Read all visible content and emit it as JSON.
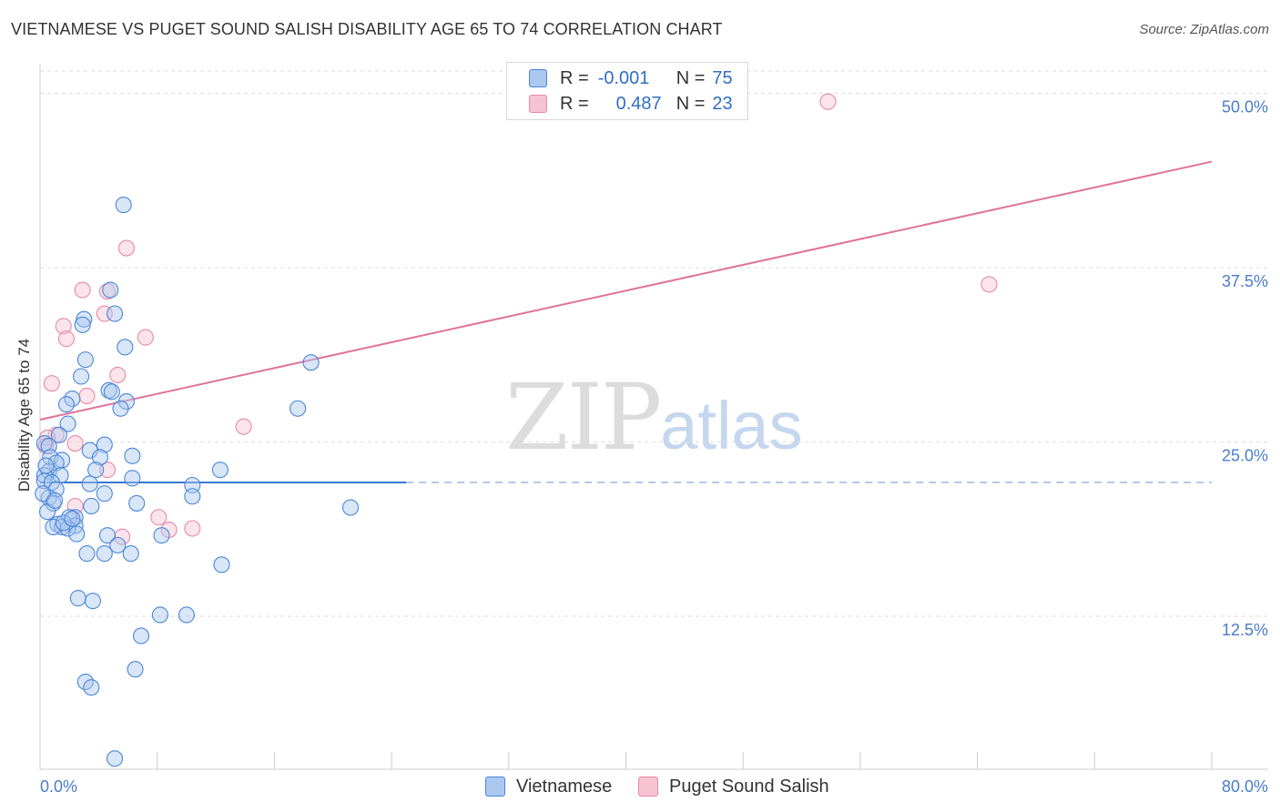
{
  "title": "VIETNAMESE VS PUGET SOUND SALISH DISABILITY AGE 65 TO 74 CORRELATION CHART",
  "source": "Source: ZipAtlas.com",
  "watermark": {
    "zip": "ZIP",
    "atlas": "atlas"
  },
  "colors": {
    "vietnamese_fill": "#aac8f0",
    "vietnamese_stroke": "#4a86d8",
    "vietnamese_line": "#3a78d0",
    "salish_fill": "#f6c3d2",
    "salish_stroke": "#e889a7",
    "salish_line": "#e0729a",
    "tick_label": "#4a7cc9",
    "grid": "#dddddd"
  },
  "legend": {
    "rows": [
      {
        "r_label": "R =",
        "r_value": "-0.001",
        "n_label": "N =",
        "n_value": "75"
      },
      {
        "r_label": "R =",
        "r_value": "0.487",
        "n_label": "N =",
        "n_value": "23"
      }
    ]
  },
  "bottom_legend": [
    {
      "label": "Vietnamese"
    },
    {
      "label": "Puget Sound Salish"
    }
  ],
  "chart_data": {
    "type": "scatter",
    "title": "VIETNAMESE VS PUGET SOUND SALISH DISABILITY AGE 65 TO 74 CORRELATION CHART",
    "xlabel": "",
    "ylabel": "Disability Age 65 to 74",
    "xlim": [
      0,
      80
    ],
    "ylim": [
      0,
      52
    ],
    "x_tick_labels": [
      "0.0%",
      "80.0%"
    ],
    "y_ticks": [
      12.5,
      25.0,
      37.5,
      50.0
    ],
    "y_tick_labels": [
      "12.5%",
      "25.0%",
      "37.5%",
      "50.0%"
    ],
    "grid": true,
    "series": [
      {
        "name": "Vietnamese",
        "r": -0.001,
        "n": 75,
        "trend": {
          "x0": 0.0,
          "y0": 22.1,
          "x1": 25.0,
          "y1": 22.1,
          "dashed_to_x": 80.0
        },
        "points": [
          [
            5.7,
            42.0
          ],
          [
            4.8,
            35.9
          ],
          [
            5.1,
            34.2
          ],
          [
            3.0,
            33.8
          ],
          [
            2.9,
            33.4
          ],
          [
            5.8,
            31.8
          ],
          [
            3.1,
            30.9
          ],
          [
            18.5,
            30.7
          ],
          [
            2.8,
            29.7
          ],
          [
            4.7,
            28.7
          ],
          [
            4.9,
            28.6
          ],
          [
            2.2,
            28.1
          ],
          [
            5.9,
            27.9
          ],
          [
            1.8,
            27.7
          ],
          [
            5.5,
            27.4
          ],
          [
            17.6,
            27.4
          ],
          [
            1.9,
            26.3
          ],
          [
            1.3,
            25.5
          ],
          [
            0.3,
            24.9
          ],
          [
            0.6,
            24.7
          ],
          [
            4.4,
            24.8
          ],
          [
            3.4,
            24.4
          ],
          [
            6.3,
            24.0
          ],
          [
            0.7,
            23.9
          ],
          [
            1.5,
            23.7
          ],
          [
            4.1,
            23.9
          ],
          [
            1.1,
            23.5
          ],
          [
            3.8,
            23.0
          ],
          [
            12.3,
            23.0
          ],
          [
            0.6,
            22.9
          ],
          [
            1.4,
            22.6
          ],
          [
            0.3,
            22.6
          ],
          [
            0.3,
            22.2
          ],
          [
            0.8,
            22.1
          ],
          [
            6.3,
            22.4
          ],
          [
            3.4,
            22.0
          ],
          [
            10.4,
            21.9
          ],
          [
            4.4,
            21.3
          ],
          [
            1.1,
            21.6
          ],
          [
            10.4,
            21.1
          ],
          [
            0.6,
            21.0
          ],
          [
            0.9,
            20.6
          ],
          [
            6.6,
            20.6
          ],
          [
            3.5,
            20.4
          ],
          [
            21.2,
            20.3
          ],
          [
            0.5,
            20.0
          ],
          [
            2.4,
            19.6
          ],
          [
            2.0,
            19.6
          ],
          [
            1.2,
            19.1
          ],
          [
            2.4,
            19.0
          ],
          [
            1.5,
            18.9
          ],
          [
            0.9,
            18.9
          ],
          [
            1.9,
            18.8
          ],
          [
            2.5,
            18.4
          ],
          [
            4.6,
            18.3
          ],
          [
            8.3,
            18.3
          ],
          [
            5.3,
            17.6
          ],
          [
            3.2,
            17.0
          ],
          [
            4.4,
            17.0
          ],
          [
            6.2,
            17.0
          ],
          [
            12.4,
            16.2
          ],
          [
            2.6,
            13.8
          ],
          [
            3.6,
            13.6
          ],
          [
            8.2,
            12.6
          ],
          [
            10.0,
            12.6
          ],
          [
            6.9,
            11.1
          ],
          [
            6.5,
            8.7
          ],
          [
            3.1,
            7.8
          ],
          [
            3.5,
            7.4
          ],
          [
            5.1,
            2.3
          ],
          [
            0.2,
            21.3
          ],
          [
            1.6,
            19.2
          ],
          [
            2.2,
            19.5
          ],
          [
            0.4,
            23.3
          ],
          [
            1.0,
            20.8
          ]
        ]
      },
      {
        "name": "Puget Sound Salish",
        "r": 0.487,
        "n": 23,
        "trend": {
          "x0": 0.0,
          "y0": 26.6,
          "x1": 80.0,
          "y1": 45.1
        },
        "points": [
          [
            53.8,
            49.4
          ],
          [
            5.9,
            38.9
          ],
          [
            64.8,
            36.3
          ],
          [
            2.9,
            35.9
          ],
          [
            4.6,
            35.8
          ],
          [
            4.4,
            34.2
          ],
          [
            1.6,
            33.3
          ],
          [
            1.8,
            32.4
          ],
          [
            7.2,
            32.5
          ],
          [
            5.3,
            29.8
          ],
          [
            0.8,
            29.2
          ],
          [
            3.2,
            28.3
          ],
          [
            13.9,
            26.1
          ],
          [
            1.1,
            25.5
          ],
          [
            0.5,
            25.3
          ],
          [
            2.4,
            24.9
          ],
          [
            4.6,
            23.0
          ],
          [
            2.4,
            20.4
          ],
          [
            8.1,
            19.6
          ],
          [
            10.4,
            18.8
          ],
          [
            8.8,
            18.7
          ],
          [
            5.6,
            18.2
          ],
          [
            0.4,
            24.7
          ]
        ]
      }
    ]
  }
}
